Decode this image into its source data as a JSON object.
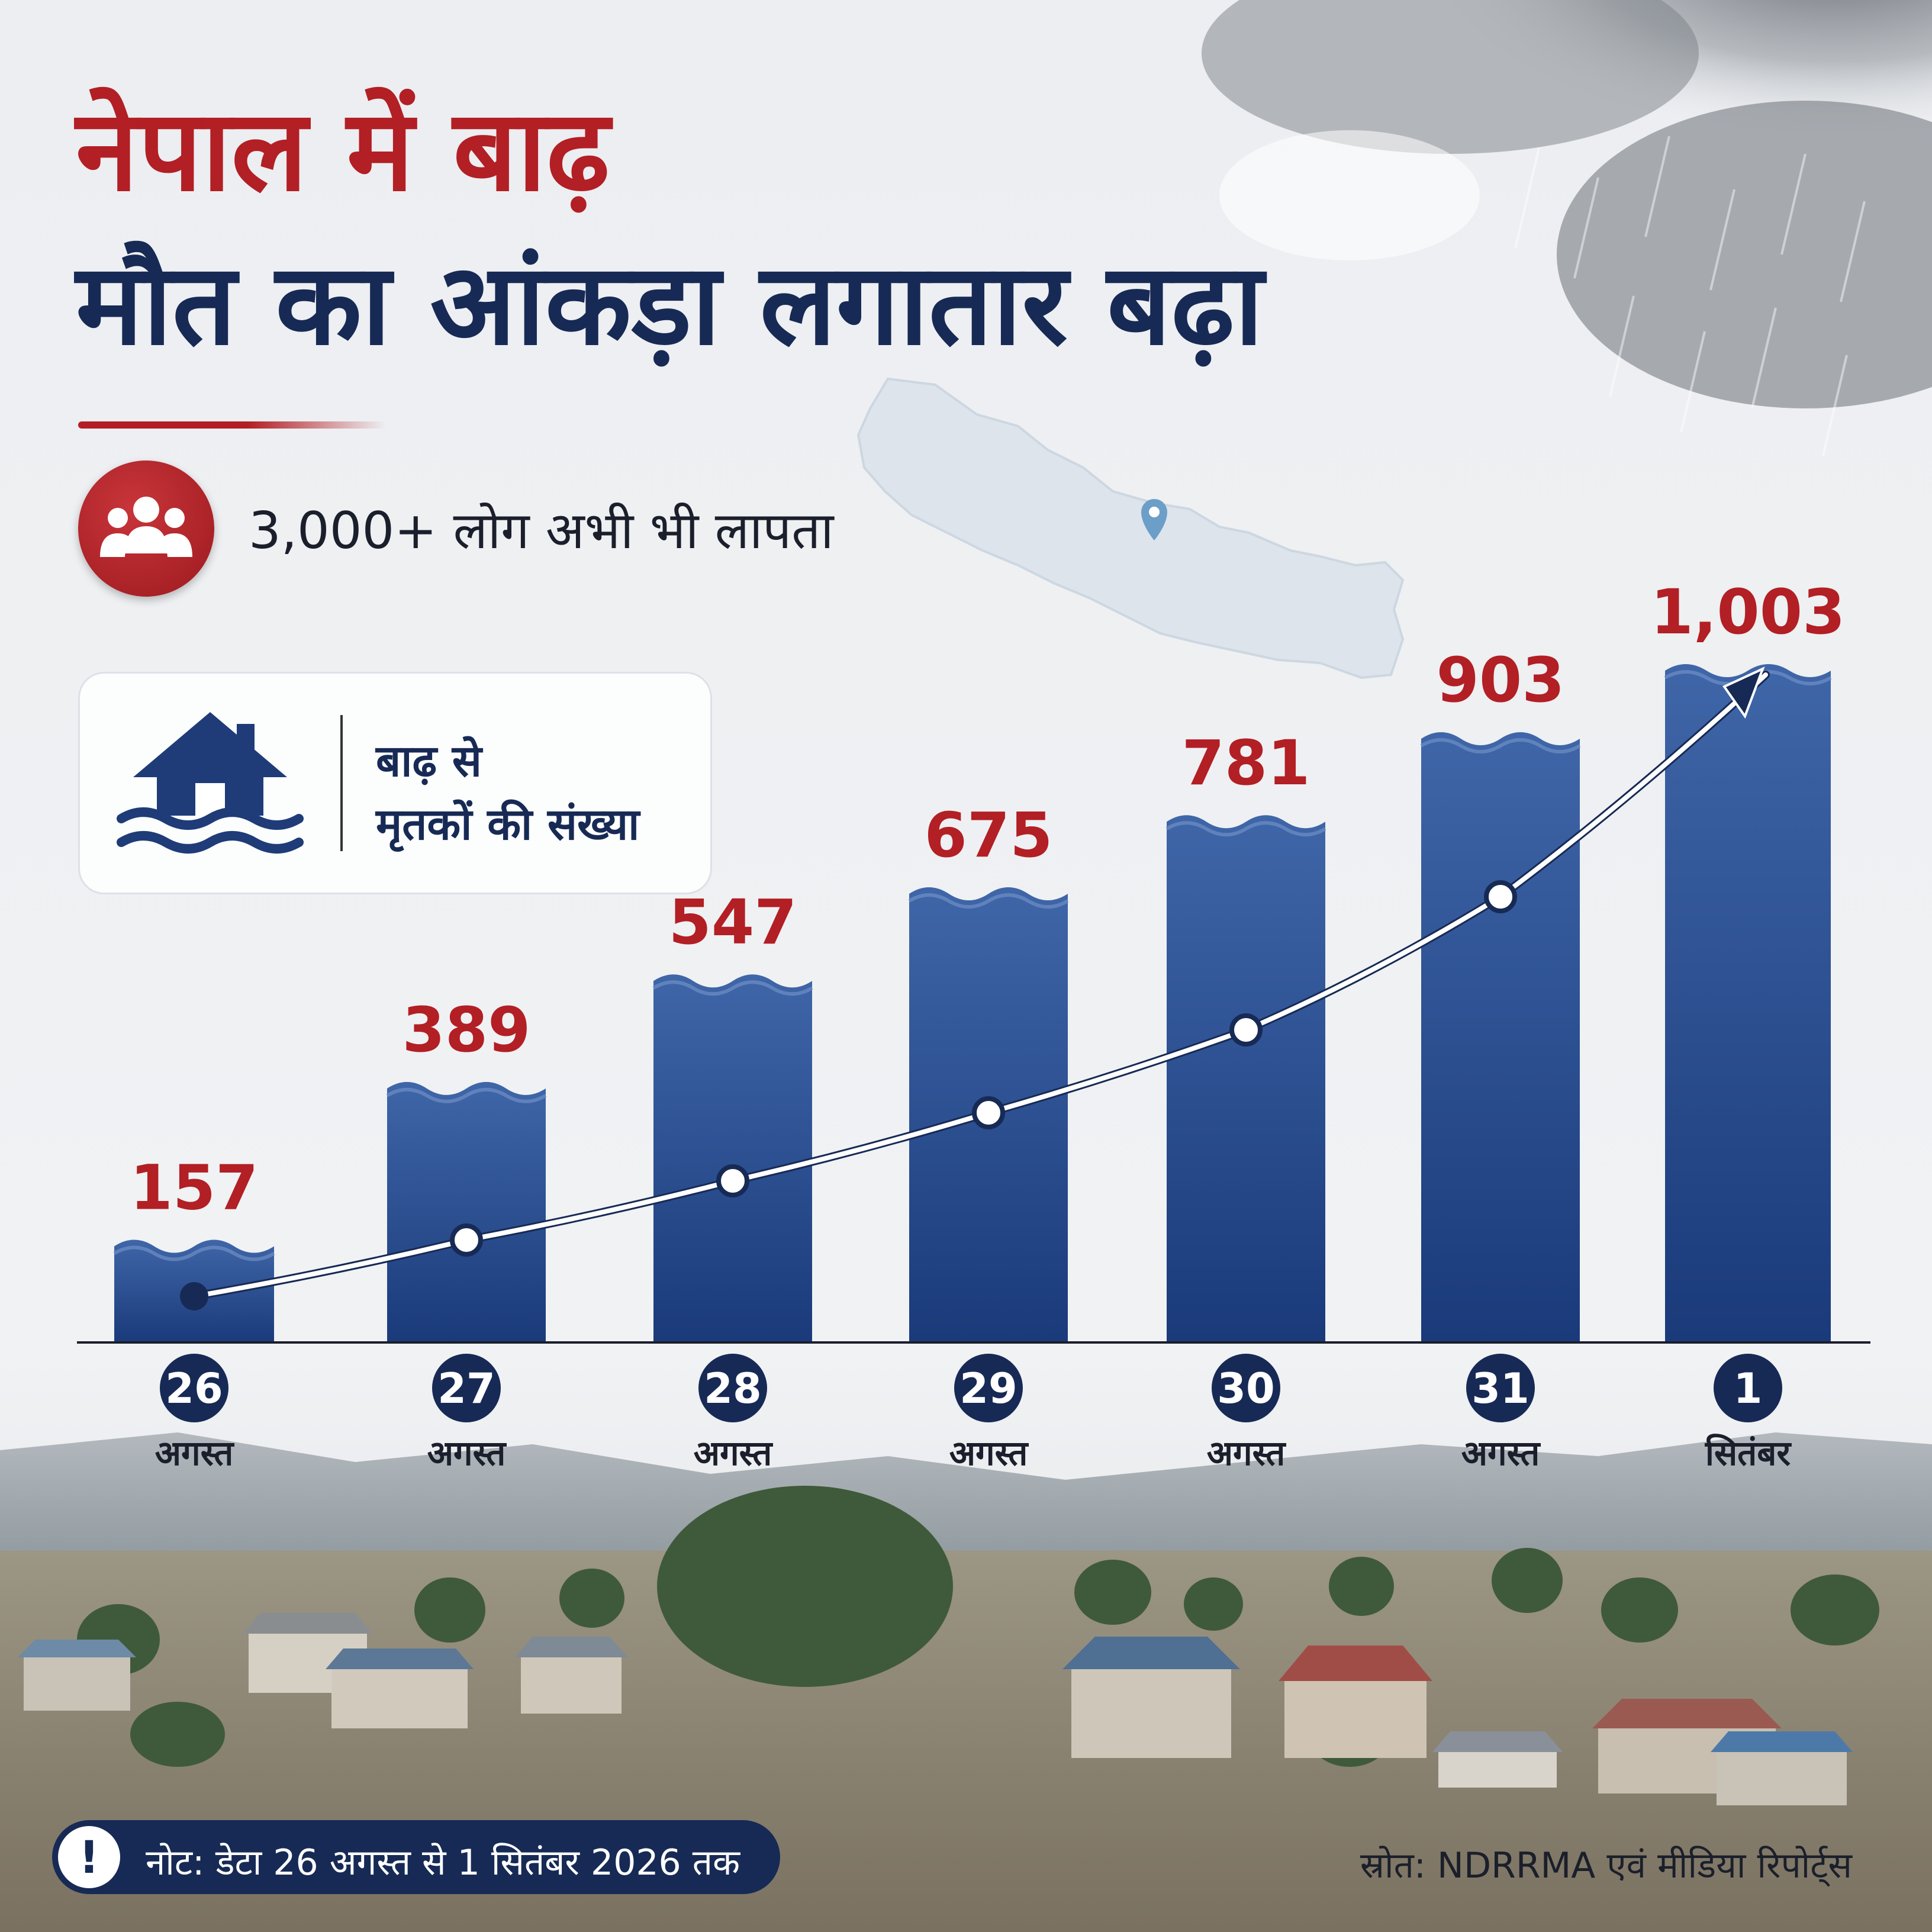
{
  "title_line1": "नेपाल में बाढ़",
  "title_line2": "मौत का आंकड़ा लगातार बढ़ा",
  "missing_text": "3,000+ लोग अभी भी लापता",
  "legend": {
    "line1": "बाढ़ से",
    "line2": "मृतकों की संख्या"
  },
  "note": "नोट: डेटा 26 अगस्त से 1 सितंबर 2026 तक",
  "source": "स्रोत: NDRRMA एवं मीडिया रिपोर्ट्स",
  "icons": {
    "missing": "people-group-icon",
    "legend": "flooded-house-icon",
    "note": "exclamation-icon",
    "map_pin": "map-pin-icon"
  },
  "colors": {
    "title_red": "#b21f24",
    "title_navy": "#172a55",
    "bar_top": "#3f66a8",
    "bar_bottom": "#1a3a7a",
    "value_label": "#b21f24"
  },
  "chart_data": {
    "type": "bar",
    "title": "बाढ़ से मृतकों की संख्या",
    "categories": [
      {
        "day": "26",
        "month": "अगस्त"
      },
      {
        "day": "27",
        "month": "अगस्त"
      },
      {
        "day": "28",
        "month": "अगस्त"
      },
      {
        "day": "29",
        "month": "अगस्त"
      },
      {
        "day": "30",
        "month": "अगस्त"
      },
      {
        "day": "31",
        "month": "अगस्त"
      },
      {
        "day": "1",
        "month": "सितंबर"
      }
    ],
    "values": [
      157,
      389,
      547,
      675,
      781,
      903,
      1003
    ],
    "value_labels": [
      "157",
      "389",
      "547",
      "675",
      "781",
      "903",
      "1,003"
    ],
    "trend_line": true,
    "ylim": [
      0,
      1003
    ],
    "grid": false,
    "legend_position": "top-left"
  }
}
